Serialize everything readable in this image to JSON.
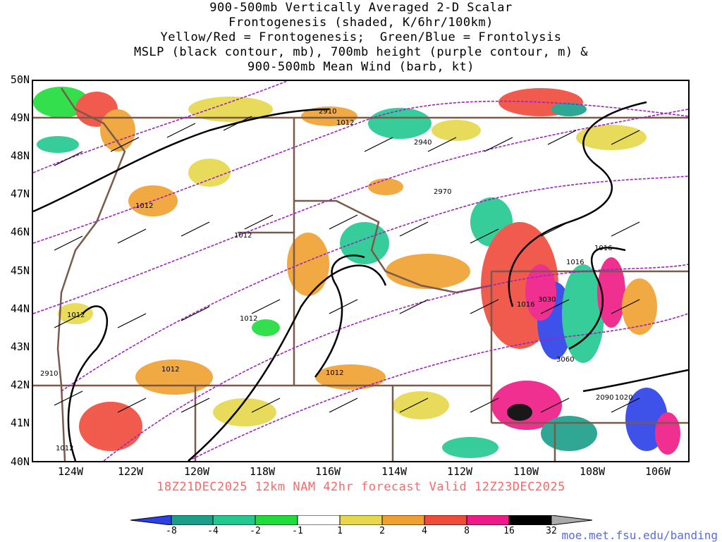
{
  "title_lines": [
    "900-500mb Vertically Averaged 2-D Scalar",
    "Frontogenesis (shaded, K/6hr/100km)",
    "Yellow/Red = Frontogenesis;  Green/Blue = Frontolysis",
    "MSLP (black contour, mb), 700mb height (purple contour, m) &",
    "900-500mb Mean Wind (barb, kt)"
  ],
  "lat_labels": [
    "50N",
    "49N",
    "48N",
    "47N",
    "46N",
    "45N",
    "44N",
    "43N",
    "42N",
    "41N",
    "40N"
  ],
  "lon_labels": [
    "124W",
    "122W",
    "120W",
    "118W",
    "116W",
    "114W",
    "112W",
    "110W",
    "108W",
    "106W"
  ],
  "valid_line": "18Z21DEC2025 12km NAM 42hr forecast Valid 12Z23DEC2025",
  "colorbar": {
    "labels": [
      "-8",
      "-4",
      "-2",
      "-1",
      "1",
      "2",
      "4",
      "8",
      "16",
      "32"
    ],
    "colors": [
      "#2a40e8",
      "#1a9e8a",
      "#22c890",
      "#1edc3a",
      "#ffffff",
      "#e6d84a",
      "#f0a030",
      "#f04a3a",
      "#ee1a86",
      "#000000"
    ]
  },
  "contour_labels": {
    "mslp": [
      "1012",
      "1012",
      "1012",
      "1012",
      "1012",
      "1012",
      "1012",
      "1016",
      "1016",
      "1016",
      "1020",
      "1012"
    ],
    "height": [
      "2910",
      "2940",
      "2970",
      "3030",
      "3060",
      "2910",
      "2090"
    ]
  },
  "credit": "moe.met.fsu.edu/banding"
}
